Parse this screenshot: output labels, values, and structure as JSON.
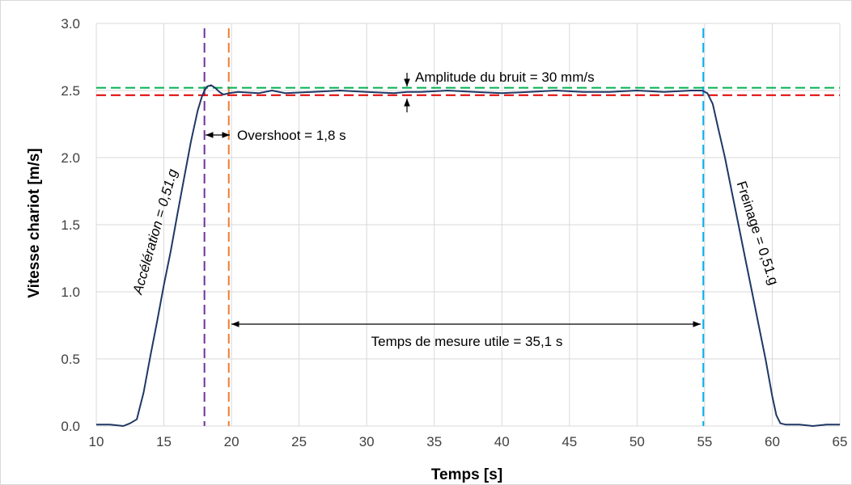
{
  "chart_data": {
    "type": "line",
    "xlabel": "Temps [s]",
    "ylabel": "Vitesse chariot [m/s]",
    "xlim": [
      10,
      65
    ],
    "ylim": [
      0,
      3.0
    ],
    "x_ticks": [
      "10",
      "15",
      "20",
      "25",
      "30",
      "35",
      "40",
      "45",
      "50",
      "55",
      "60",
      "65"
    ],
    "y_ticks": [
      "0.0",
      "0.5",
      "1.0",
      "1.5",
      "2.0",
      "2.5",
      "3.0"
    ],
    "grid": true,
    "series": [
      {
        "color": "#1f3864",
        "x": [
          10,
          11,
          12,
          12.5,
          13,
          13.5,
          14,
          14.5,
          15,
          15.5,
          16,
          16.5,
          17,
          17.5,
          17.8,
          18.0,
          18.2,
          18.5,
          18.8,
          19.1,
          19.4,
          19.8,
          20.5,
          22,
          23,
          24,
          26,
          28,
          30,
          32,
          33,
          34,
          36,
          38,
          40,
          42,
          44,
          46,
          48,
          50,
          52,
          54,
          54.8,
          55.2,
          55.6,
          56,
          56.5,
          57,
          57.5,
          58,
          58.5,
          59,
          59.5,
          60,
          60.3,
          60.6,
          61,
          62,
          63,
          64,
          65
        ],
        "y": [
          0.01,
          0.01,
          0.0,
          0.02,
          0.05,
          0.25,
          0.52,
          0.78,
          1.05,
          1.3,
          1.58,
          1.85,
          2.12,
          2.35,
          2.45,
          2.5,
          2.53,
          2.54,
          2.52,
          2.49,
          2.47,
          2.48,
          2.49,
          2.48,
          2.5,
          2.48,
          2.49,
          2.5,
          2.49,
          2.48,
          2.49,
          2.49,
          2.5,
          2.49,
          2.48,
          2.49,
          2.5,
          2.49,
          2.49,
          2.5,
          2.49,
          2.5,
          2.5,
          2.48,
          2.4,
          2.22,
          2.0,
          1.75,
          1.5,
          1.25,
          1.0,
          0.75,
          0.5,
          0.22,
          0.08,
          0.02,
          0.01,
          0.01,
          0.0,
          0.01,
          0.01
        ]
      }
    ],
    "reference_lines": [
      {
        "axis": "x",
        "value": 18.0,
        "color": "#7030a0",
        "style": "dashed"
      },
      {
        "axis": "x",
        "value": 19.8,
        "color": "#ed7d31",
        "style": "dashed"
      },
      {
        "axis": "x",
        "value": 54.9,
        "color": "#00b0f0",
        "style": "dashed"
      },
      {
        "axis": "y",
        "value": 2.52,
        "color": "#00b050",
        "style": "dashed"
      },
      {
        "axis": "y",
        "value": 2.465,
        "color": "#e00000",
        "style": "dashed"
      }
    ],
    "annotations": {
      "noise": "Amplitude du bruit = 30 mm/s",
      "overshoot": "Overshoot = 1,8 s",
      "acceleration": "Accélération = 0,51.g",
      "braking": "Freinage = 0,51.g",
      "measure_time": "Temps de mesure utile = 35,1 s"
    }
  }
}
